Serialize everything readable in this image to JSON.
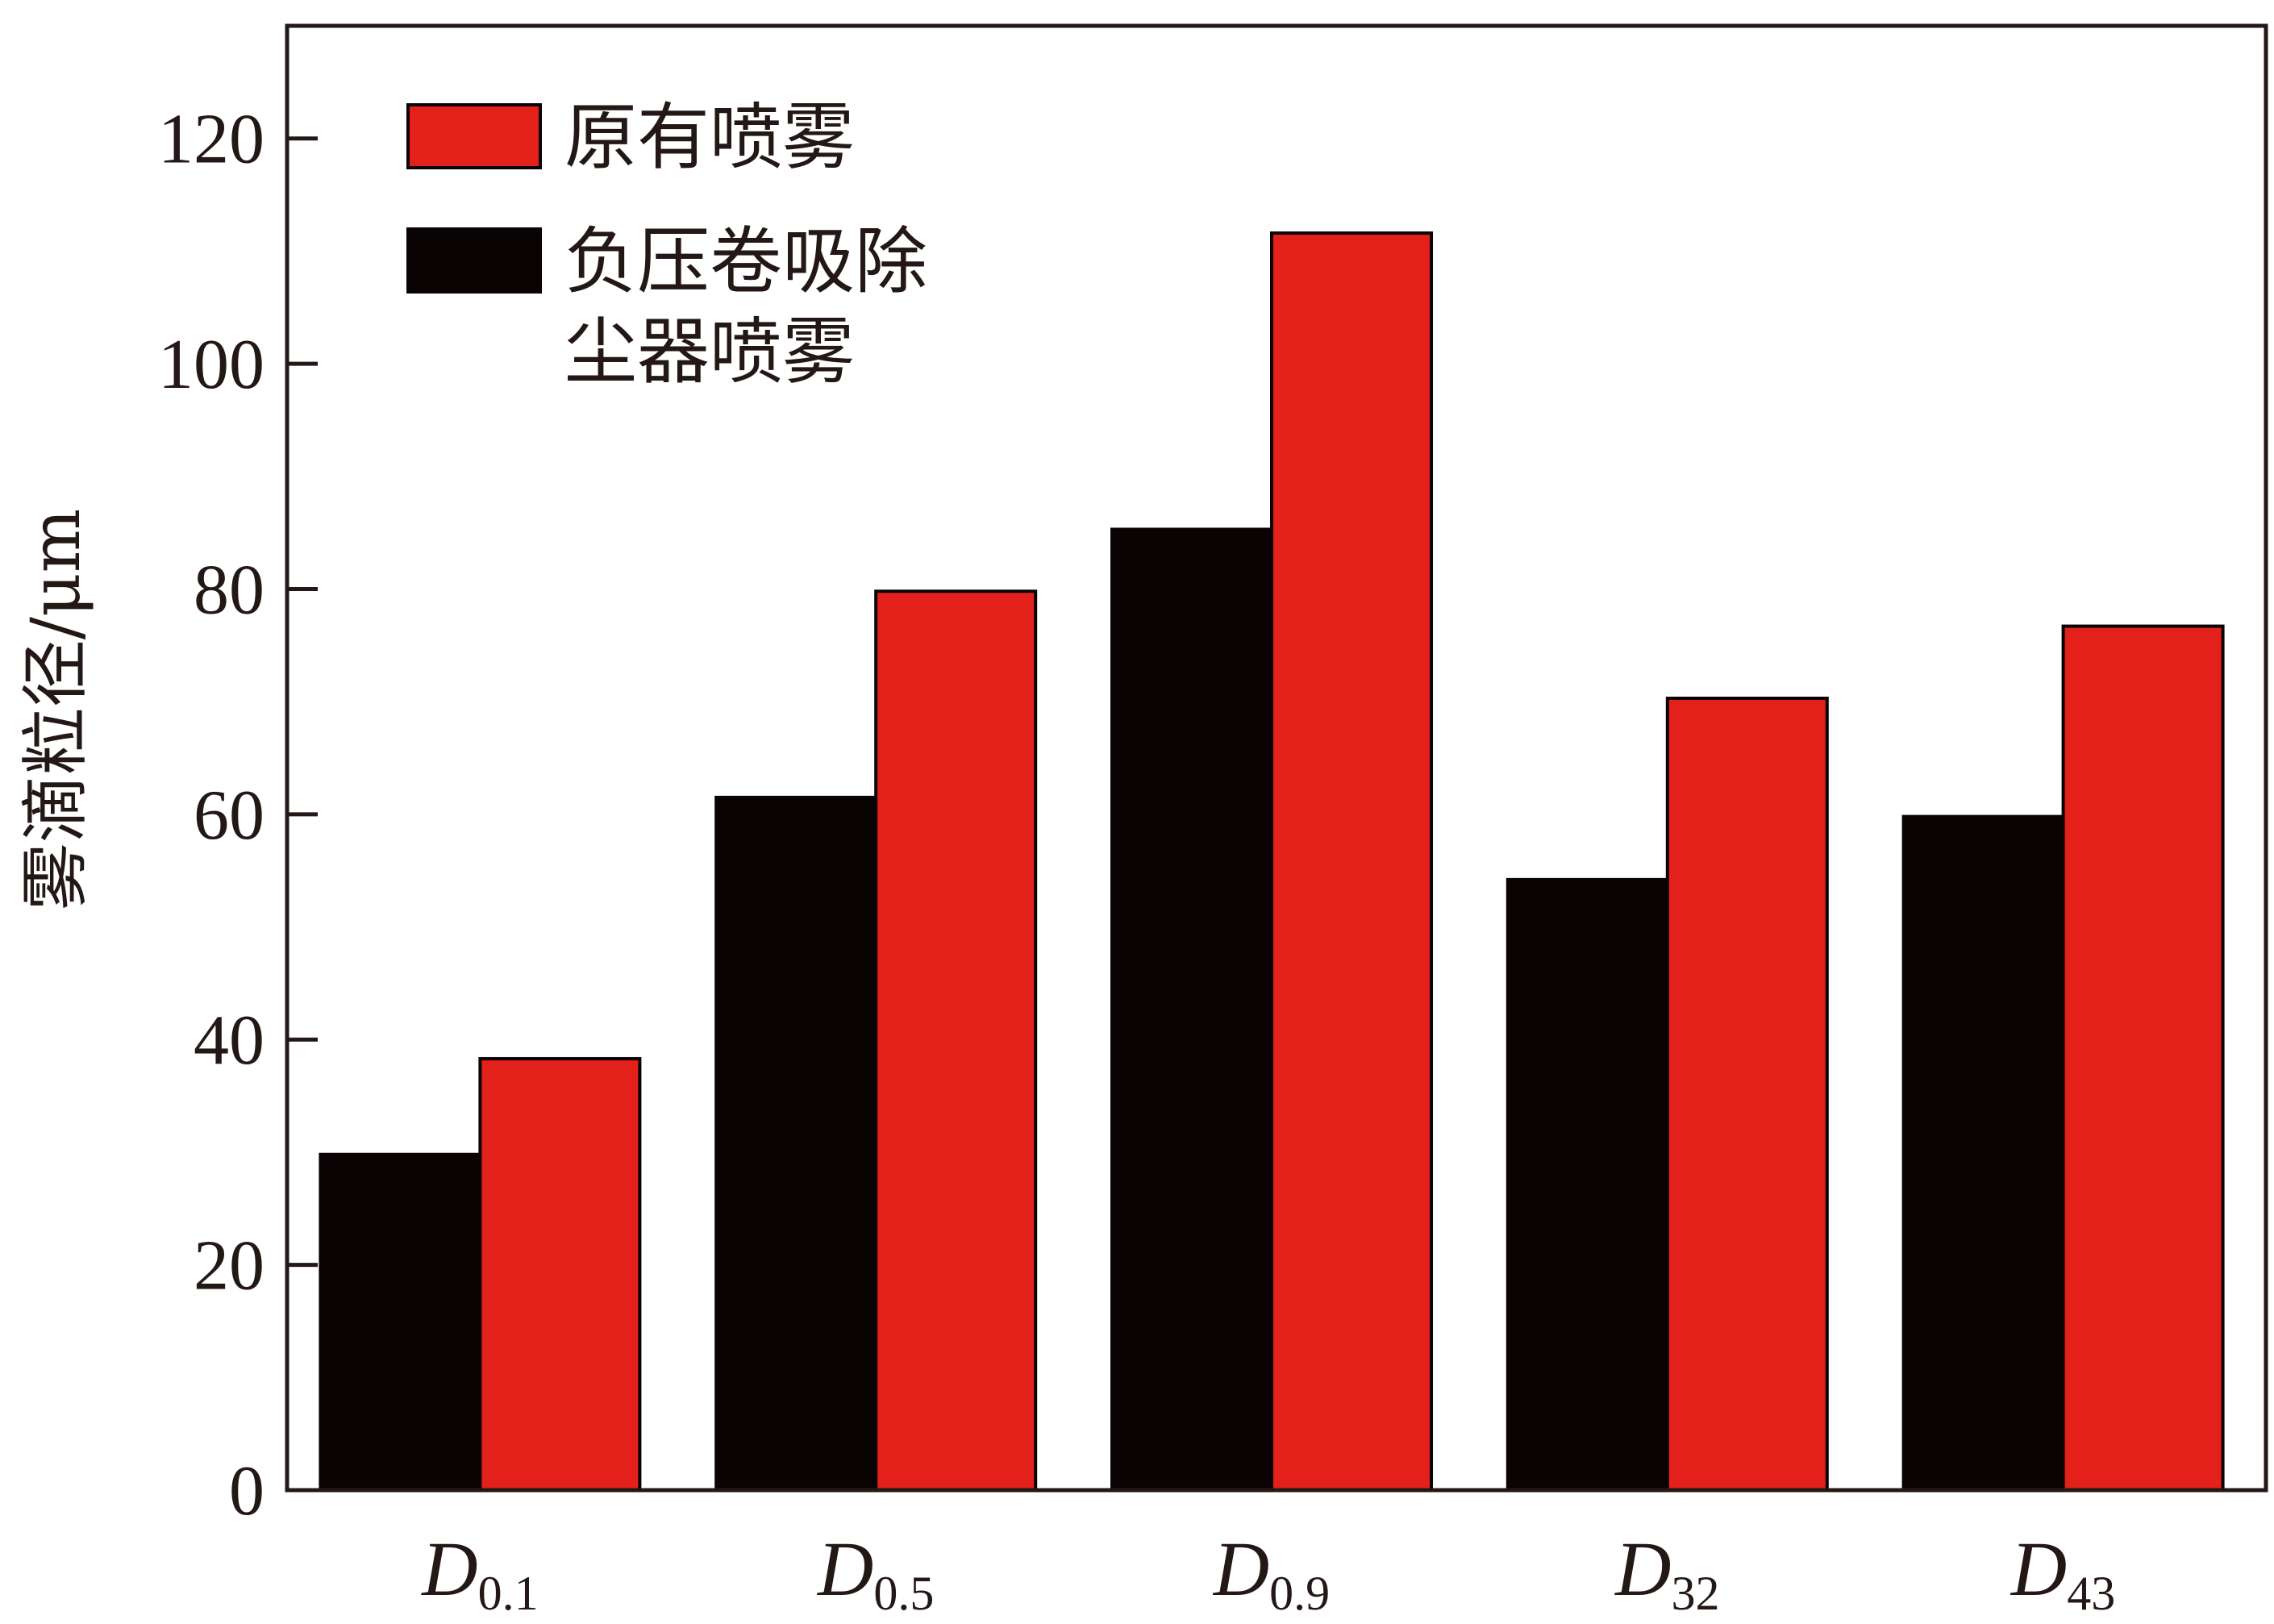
{
  "chart_data": {
    "type": "bar",
    "categories": [
      {
        "main": "D",
        "sub": "0.1"
      },
      {
        "main": "D",
        "sub": "0.5"
      },
      {
        "main": "D",
        "sub": "0.9"
      },
      {
        "main": "D",
        "sub": "32"
      },
      {
        "main": "D",
        "sub": "43"
      }
    ],
    "series": [
      {
        "name_lines": [
          "负压卷吸除",
          "尘器喷雾"
        ],
        "color": "#0a0304",
        "values": [
          29.8,
          61.5,
          85.3,
          54.2,
          59.8
        ]
      },
      {
        "name_lines": [
          "原有喷雾"
        ],
        "color": "#e3211a",
        "values": [
          38.3,
          79.8,
          111.6,
          70.3,
          76.7
        ]
      }
    ],
    "ylabel": "雾滴粒径/μm",
    "ylim": [
      0,
      130
    ],
    "yticks": [
      0,
      20,
      40,
      60,
      80,
      100,
      120
    ],
    "legend": {
      "placement": "top-left",
      "order": [
        1,
        0
      ]
    },
    "grid": false
  }
}
